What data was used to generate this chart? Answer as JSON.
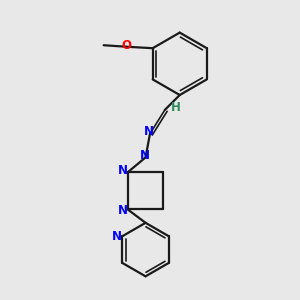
{
  "background_color": "#e8e8e8",
  "bond_color": "#1a1a1a",
  "N_color": "#0000ff",
  "O_color": "#ff0000",
  "H_color": "#2e8b57",
  "figsize": [
    3.0,
    3.0
  ],
  "dpi": 100,
  "xlim": [
    0,
    10
  ],
  "ylim": [
    0,
    10
  ]
}
